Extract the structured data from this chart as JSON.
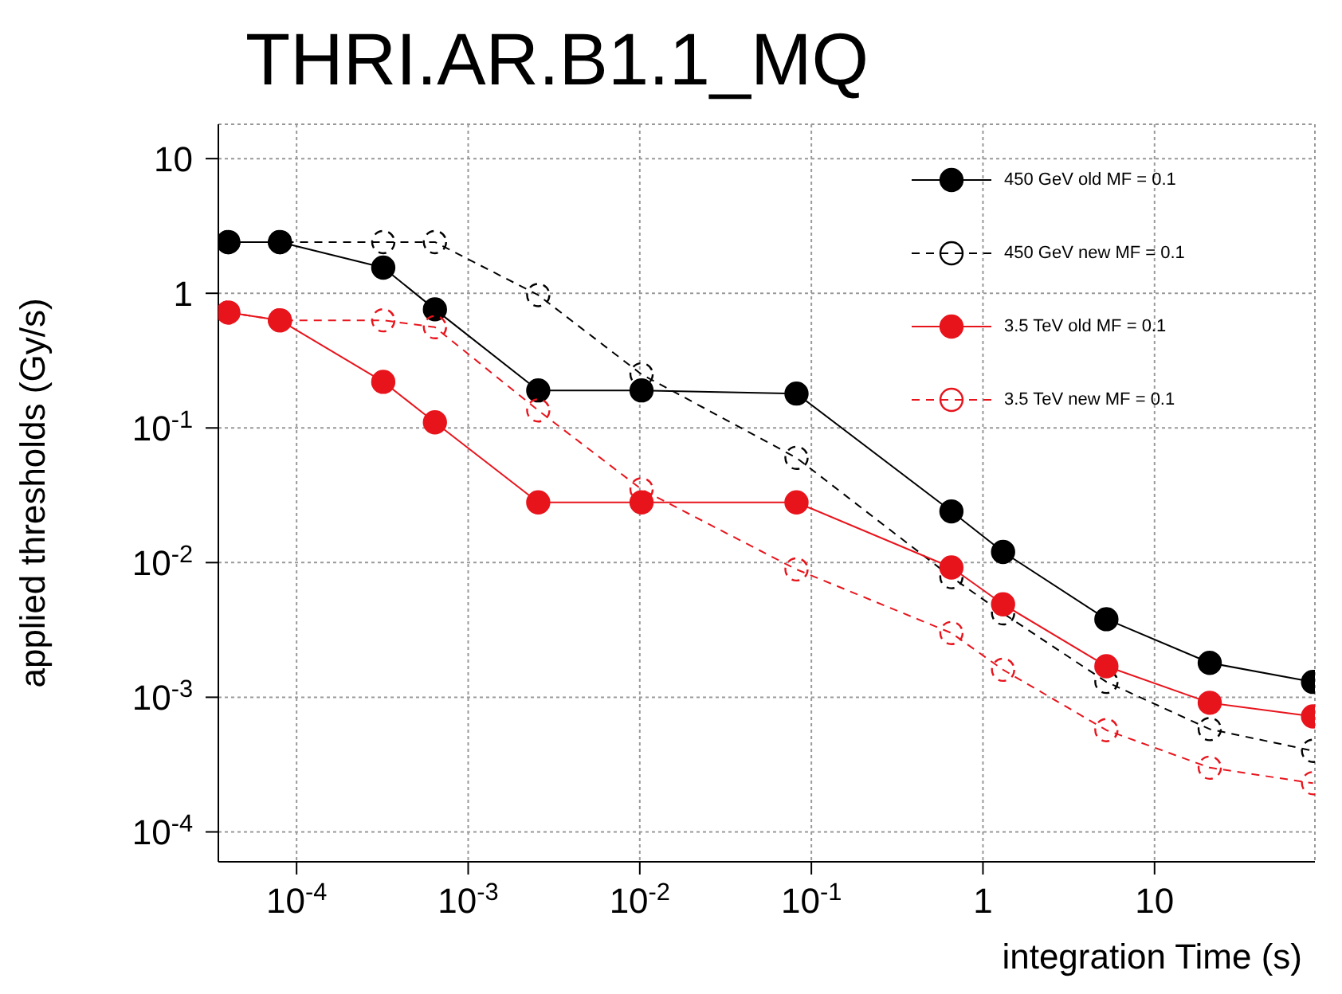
{
  "chart_data": {
    "type": "line",
    "title": "THRI.AR.B1.1_MQ",
    "xlabel": "integration Time (s)",
    "ylabel": "applied thresholds  (Gy/s)",
    "x": [
      4e-05,
      8e-05,
      0.00032,
      0.00064,
      0.00256,
      0.01024,
      0.08192,
      0.655,
      1.31,
      5.24,
      20.97,
      83.89
    ],
    "series": [
      {
        "name": "450 GeV old MF = 0.1",
        "color": "#000000",
        "line_style": "solid",
        "values": [
          2.4,
          2.4,
          1.55,
          0.76,
          0.19,
          0.19,
          0.18,
          0.024,
          0.012,
          0.0038,
          0.0018,
          0.0013
        ]
      },
      {
        "name": "450 GeV new MF = 0.1",
        "color": "#000000",
        "line_style": "dashed",
        "values": [
          2.4,
          2.4,
          2.4,
          2.4,
          0.97,
          0.25,
          0.06,
          0.0078,
          0.0042,
          0.0013,
          0.00058,
          0.0004
        ]
      },
      {
        "name": "3.5 TeV old MF = 0.1",
        "color": "#e8141c",
        "line_style": "solid",
        "values": [
          0.72,
          0.63,
          0.22,
          0.11,
          0.028,
          0.028,
          0.028,
          0.0092,
          0.0049,
          0.0017,
          0.00091,
          0.00072
        ]
      },
      {
        "name": "3.5 TeV new MF = 0.1",
        "color": "#e8141c",
        "line_style": "dashed",
        "values": [
          0.72,
          0.63,
          0.63,
          0.56,
          0.135,
          0.035,
          0.0089,
          0.003,
          0.0016,
          0.00057,
          0.0003,
          0.00023
        ]
      }
    ],
    "log": "xy",
    "xlim": [
      3.5e-05,
      86
    ],
    "ylim": [
      6e-05,
      18
    ],
    "xticks": [
      {
        "value": 0.0001,
        "label": "10$^{-4}$"
      },
      {
        "value": 0.001,
        "label": "10$^{-3}$"
      },
      {
        "value": 0.01,
        "label": "10$^{-2}$"
      },
      {
        "value": 0.1,
        "label": "10$^{-1}$"
      },
      1,
      10
    ],
    "yticks": [
      {
        "value": 0.0001,
        "label": "10$^{-4}$"
      },
      {
        "value": 0.001,
        "label": "10$^{-3}$"
      },
      {
        "value": 0.01,
        "label": "10$^{-2}$"
      },
      {
        "value": 0.1,
        "label": "10$^{-1}$"
      },
      1,
      10
    ],
    "grid": true,
    "legend": "top right",
    "marker": "circle"
  }
}
